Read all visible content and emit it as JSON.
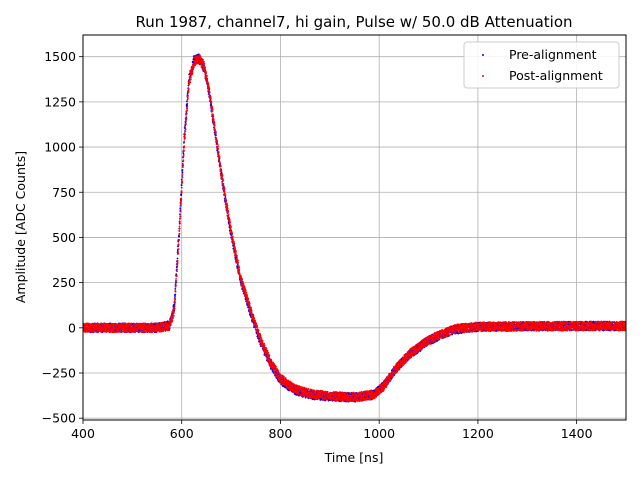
{
  "chart_data": {
    "type": "scatter",
    "title": "Run 1987, channel7, hi gain, Pulse w/ 50.0 dB Attenuation",
    "xlabel": "Time [ns]",
    "ylabel": "Amplitude [ADC Counts]",
    "xlim": [
      400,
      1500
    ],
    "ylim": [
      -510,
      1620
    ],
    "xticks": [
      400,
      600,
      800,
      1000,
      1200,
      1400
    ],
    "yticks": [
      -500,
      -250,
      0,
      250,
      500,
      750,
      1000,
      1250,
      1500
    ],
    "xtick_labels": [
      "400",
      "600",
      "800",
      "1000",
      "1200",
      "1400"
    ],
    "ytick_labels": [
      "−500",
      "−250",
      "0",
      "250",
      "500",
      "750",
      "1000",
      "1250",
      "1500"
    ],
    "grid": true,
    "legend_position": "top-right",
    "noise_band": 25,
    "series": [
      {
        "name": "Pre-alignment",
        "color": "#0000ff",
        "marker": "dot",
        "x": [
          400,
          450,
          500,
          550,
          575,
          585,
          595,
          605,
          615,
          625,
          635,
          645,
          655,
          665,
          680,
          700,
          720,
          740,
          760,
          780,
          800,
          830,
          860,
          900,
          950,
          990,
          1010,
          1030,
          1060,
          1100,
          1150,
          1200,
          1300,
          1400,
          1500
        ],
        "y": [
          0,
          0,
          0,
          0,
          15,
          120,
          550,
          1050,
          1380,
          1480,
          1490,
          1440,
          1310,
          1130,
          850,
          520,
          260,
          80,
          -80,
          -200,
          -290,
          -345,
          -370,
          -380,
          -385,
          -370,
          -320,
          -240,
          -150,
          -70,
          -10,
          5,
          8,
          10,
          10
        ]
      },
      {
        "name": "Post-alignment",
        "color": "#ff0000",
        "marker": "dot",
        "x": [
          400,
          450,
          500,
          550,
          575,
          585,
          595,
          605,
          615,
          625,
          635,
          645,
          655,
          665,
          680,
          700,
          720,
          740,
          760,
          780,
          800,
          830,
          860,
          900,
          950,
          990,
          1010,
          1030,
          1060,
          1100,
          1150,
          1200,
          1300,
          1400,
          1500
        ],
        "y": [
          0,
          0,
          0,
          0,
          10,
          100,
          520,
          1020,
          1360,
          1470,
          1490,
          1450,
          1320,
          1140,
          860,
          530,
          270,
          90,
          -70,
          -190,
          -280,
          -340,
          -365,
          -378,
          -383,
          -368,
          -318,
          -238,
          -148,
          -68,
          -8,
          6,
          8,
          10,
          10
        ]
      }
    ]
  }
}
